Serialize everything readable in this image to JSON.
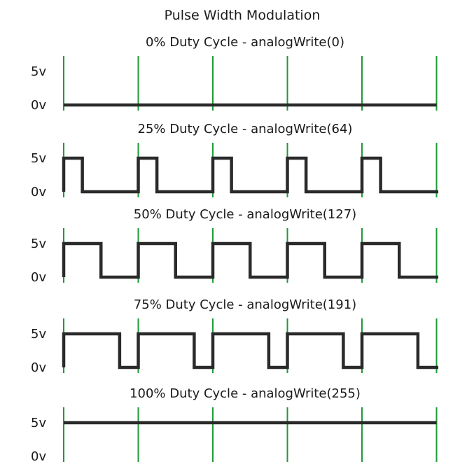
{
  "title": "Pulse Width Modulation",
  "high_label": "5v",
  "low_label": "0v",
  "colors": {
    "period_marker": "#1f9a3a",
    "signal": "#2a2a2a"
  },
  "periods_shown": 5,
  "panels": [
    {
      "label": "0% Duty Cycle - analogWrite(0)",
      "duty": 0.0
    },
    {
      "label": "25% Duty Cycle - analogWrite(64)",
      "duty": 0.25
    },
    {
      "label": "50% Duty Cycle - analogWrite(127)",
      "duty": 0.5
    },
    {
      "label": "75% Duty Cycle - analogWrite(191)",
      "duty": 0.75
    },
    {
      "label": "100% Duty Cycle - analogWrite(255)",
      "duty": 1.0
    }
  ]
}
